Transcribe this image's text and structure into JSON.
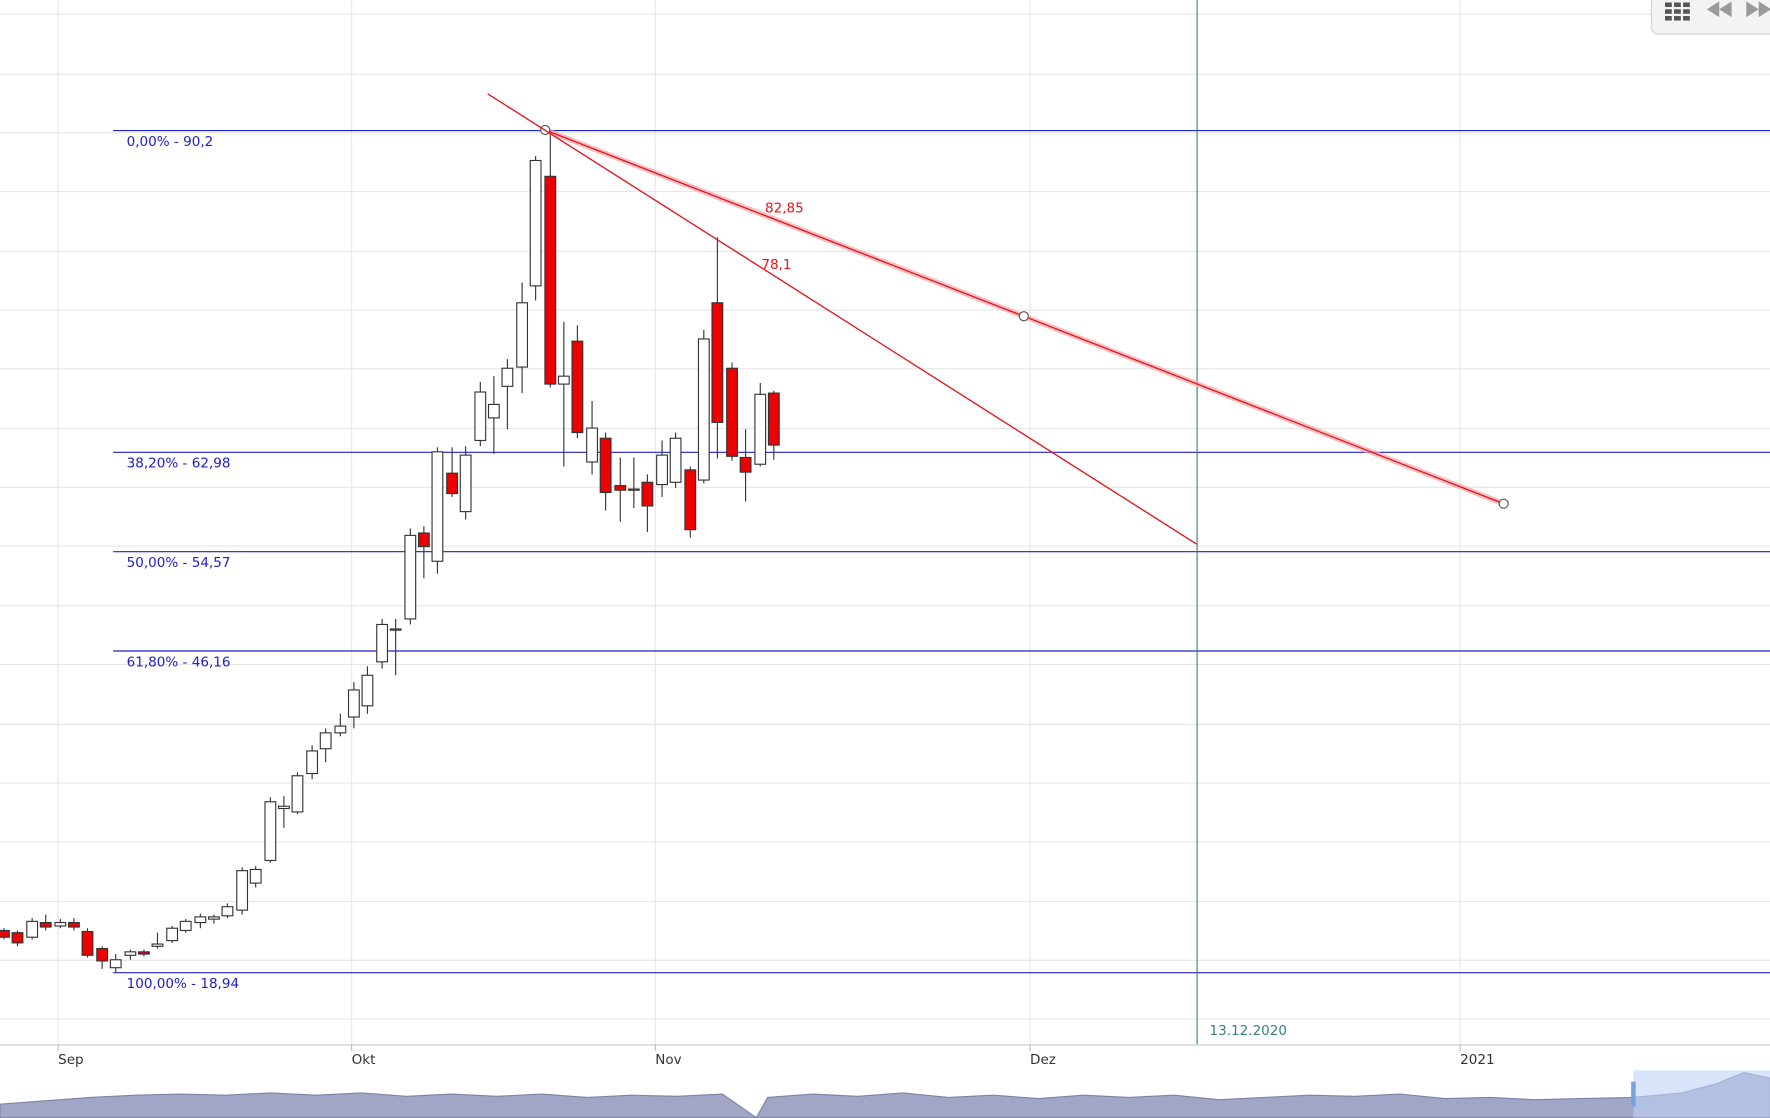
{
  "chart_data": {
    "type": "candlestick",
    "xlim": [
      -0.242,
      126.21
    ],
    "ylim": [
      12.83,
      101.18
    ],
    "xticks": [
      {
        "value": 3.87,
        "label": "Sep"
      },
      {
        "value": 24.84,
        "label": "Okt"
      },
      {
        "value": 46.53,
        "label": "Nov"
      },
      {
        "value": 73.31,
        "label": "Dez"
      },
      {
        "value": 104.03,
        "label": "2021"
      }
    ],
    "yticks": [
      15,
      20,
      25,
      30,
      35,
      40,
      45,
      50,
      55,
      60,
      65,
      70,
      75,
      80,
      85,
      90,
      95,
      100
    ],
    "grid": true,
    "up_color": "#ffffff",
    "down_color": "#ee0000",
    "open": [
      22.47,
      22.28,
      21.9,
      23.14,
      22.85,
      23.14,
      22.38,
      20.94,
      19.32,
      20.37,
      20.66,
      21.13,
      21.61,
      22.47,
      23.14,
      23.43,
      23.71,
      24.19,
      26.48,
      28.39,
      32.79,
      32.5,
      35.75,
      37.85,
      39.19,
      40.53,
      41.48,
      45.2,
      47.88,
      48.83,
      56.1,
      53.71,
      61.16,
      57.91,
      63.93,
      65.84,
      68.51,
      70.14,
      77.01,
      86.28,
      68.7,
      72.33,
      62.11,
      64.12,
      60.11,
      59.72,
      60.39,
      60.2,
      60.39,
      61.44,
      60.58,
      75.58,
      70.04,
      62.49,
      61.92,
      67.94
    ],
    "high": [
      22.66,
      22.47,
      23.52,
      23.81,
      23.43,
      23.52,
      22.66,
      21.13,
      20.47,
      20.85,
      20.85,
      22.28,
      22.85,
      23.43,
      23.9,
      23.81,
      24.76,
      27.82,
      27.92,
      33.74,
      33.84,
      35.85,
      38.14,
      39.57,
      40.81,
      43.49,
      44.82,
      48.83,
      48.83,
      56.48,
      56.67,
      63.35,
      63.35,
      63.45,
      68.89,
      69.37,
      70.81,
      77.3,
      88.0,
      90.2,
      73.96,
      73.67,
      67.27,
      64.6,
      62.49,
      62.49,
      61.06,
      63.93,
      64.6,
      61.73,
      73.29,
      81.12,
      70.52,
      64.88,
      68.8,
      68.13
    ],
    "low": [
      21.71,
      21.13,
      21.71,
      22.47,
      22.66,
      22.47,
      20.18,
      19.22,
      18.94,
      19.99,
      20.27,
      20.94,
      21.42,
      22.28,
      22.66,
      23.05,
      23.52,
      23.81,
      26.1,
      28.2,
      31.16,
      32.31,
      35.27,
      36.7,
      38.9,
      39.57,
      40.81,
      44.63,
      44.06,
      48.36,
      52.27,
      52.66,
      59.15,
      57.24,
      63.45,
      62.78,
      64.88,
      67.94,
      75.77,
      68.42,
      61.73,
      64.12,
      61.06,
      58.01,
      57.05,
      58.2,
      56.19,
      59.15,
      59.92,
      55.71,
      60.3,
      62.4,
      62.21,
      58.77,
      61.73,
      62.3
    ],
    "close": [
      21.9,
      21.42,
      23.24,
      22.76,
      23.14,
      22.76,
      20.37,
      19.89,
      19.99,
      20.66,
      20.47,
      21.32,
      22.66,
      23.24,
      23.62,
      23.62,
      24.48,
      27.53,
      27.63,
      33.36,
      32.98,
      35.56,
      37.66,
      39.19,
      39.76,
      42.82,
      44.06,
      48.36,
      47.98,
      55.9,
      54.95,
      62.97,
      59.44,
      62.69,
      68.03,
      66.98,
      70.04,
      75.58,
      87.62,
      68.7,
      69.37,
      64.6,
      64.98,
      59.53,
      59.72,
      59.82,
      58.39,
      62.69,
      64.12,
      56.38,
      72.52,
      65.46,
      62.59,
      61.25,
      67.84,
      63.54
    ],
    "fibonacci": {
      "color": "#2020c8",
      "levels": [
        {
          "value": 90.2,
          "label": "0,00% - 90,2"
        },
        {
          "value": 62.98,
          "label": "38,20% - 62,98"
        },
        {
          "value": 54.57,
          "label": "50,00% - 54,57"
        },
        {
          "value": 46.16,
          "label": "61,80% - 46,16"
        },
        {
          "value": 18.94,
          "label": "100,00% - 18,94"
        }
      ]
    },
    "trendlines": [
      {
        "label": "82,85",
        "color": "#e8141e",
        "x": [
          38.71,
          72.9,
          107.18
        ],
        "y": [
          90.2,
          74.44,
          58.58
        ]
      },
      {
        "label": "78,1",
        "color": "#e8141e",
        "x": [
          34.6,
          85.24
        ],
        "y": [
          93.26,
          55.16
        ]
      }
    ],
    "vertical_line": {
      "x": 85.24,
      "label": "13.12.2020",
      "color": "#3b7f7f"
    }
  }
}
